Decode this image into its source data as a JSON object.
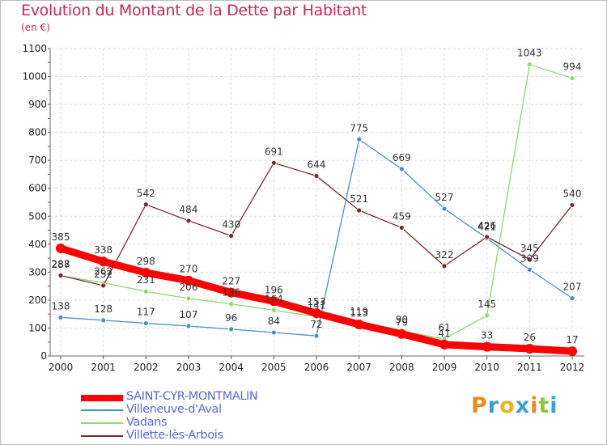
{
  "header": {
    "title": "Evolution du Montant de la Dette par Habitant",
    "subtitle": "(en €)"
  },
  "logo": {
    "letters": [
      "P",
      "r",
      "o",
      "x",
      "i",
      "t",
      "i"
    ],
    "colors": [
      "#f08a1c",
      "#3aa0d8",
      "#f0b020",
      "#3aa0d8",
      "#f08a1c",
      "#8cc63f",
      "#3aa0d8"
    ]
  },
  "chart_data": {
    "type": "line",
    "title": "Evolution du Montant de la Dette par Habitant",
    "ylabel": "(en €)",
    "xlabel": "",
    "x": [
      "2000",
      "2001",
      "2002",
      "2003",
      "2004",
      "2005",
      "2006",
      "2007",
      "2008",
      "2009",
      "2010",
      "2011",
      "2012"
    ],
    "ylim": [
      0,
      1100
    ],
    "yticks": [
      "0",
      "100",
      "200",
      "300",
      "400",
      "500",
      "600",
      "700",
      "800",
      "900",
      "1000",
      "1100"
    ],
    "grid": true,
    "legend_position": "bottom-left",
    "series": [
      {
        "name": "SAINT-CYR-MONTMALIN",
        "color": "#ff0000",
        "values": [
          385,
          338,
          298,
          270,
          227,
          196,
          153,
          113,
          79,
          41,
          33,
          26,
          17
        ],
        "labels": [
          "385",
          "338",
          "298",
          "270",
          "227",
          "196",
          "153",
          "113",
          "79",
          "41",
          "33",
          "26",
          "17"
        ]
      },
      {
        "name": "Villeneuve-d'Aval",
        "color": "#4a90c8",
        "values": [
          138,
          128,
          117,
          107,
          96,
          84,
          72,
          775,
          669,
          527,
          421,
          309,
          207
        ],
        "labels": [
          "138",
          "128",
          "117",
          "107",
          "96",
          "84",
          "72",
          "775",
          "669",
          "527",
          "421",
          "309",
          "207"
        ]
      },
      {
        "name": "Vadans",
        "color": "#8cd96e",
        "values": [
          287,
          262,
          231,
          206,
          186,
          164,
          141,
          119,
          90,
          61,
          145,
          1043,
          994
        ],
        "labels": [
          "287",
          "262",
          "231",
          "206",
          "186",
          "164",
          "141",
          "119",
          "90",
          "61",
          "145",
          "1043",
          "994"
        ]
      },
      {
        "name": "Villette-lès-Arbois",
        "color": "#7a2a2a",
        "values": [
          288,
          252,
          542,
          484,
          430,
          691,
          644,
          521,
          459,
          322,
          426,
          345,
          540
        ],
        "labels": [
          "288",
          "252",
          "542",
          "484",
          "430",
          "691",
          "644",
          "521",
          "459",
          "322",
          "426",
          "345",
          "540"
        ]
      }
    ]
  }
}
